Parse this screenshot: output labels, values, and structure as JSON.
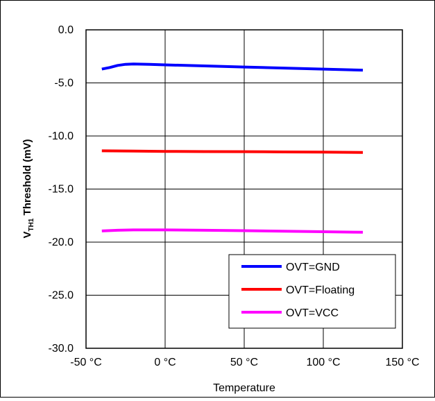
{
  "chart_data": {
    "type": "line",
    "title": "",
    "xlabel": "Temperature",
    "ylabel": {
      "prefix": "V",
      "subscript": "TH1",
      "suffix": " Threshold (mV)"
    },
    "xlim": [
      -50,
      150
    ],
    "ylim": [
      -30,
      0
    ],
    "x_ticks": [
      -50,
      0,
      50,
      100,
      150
    ],
    "x_tick_labels": [
      "-50 °C",
      "0 °C",
      "50 °C",
      "100 °C",
      "150 °C"
    ],
    "y_ticks": [
      0,
      -5,
      -10,
      -15,
      -20,
      -25,
      -30
    ],
    "y_tick_labels": [
      "0.0",
      "-5.0",
      "-10.0",
      "-15.0",
      "-20.0",
      "-25.0",
      "-30.0"
    ],
    "grid": true,
    "legend_position": "bottom-right",
    "series": [
      {
        "name": "OVT=GND",
        "color": "#0000ff",
        "x": [
          -40,
          -35,
          -30,
          -25,
          -20,
          -10,
          0,
          25,
          50,
          75,
          100,
          125
        ],
        "y": [
          -3.7,
          -3.55,
          -3.35,
          -3.25,
          -3.22,
          -3.25,
          -3.3,
          -3.4,
          -3.5,
          -3.6,
          -3.7,
          -3.8
        ]
      },
      {
        "name": "OVT=Floating",
        "color": "#ff0000",
        "x": [
          -40,
          -20,
          0,
          25,
          50,
          75,
          100,
          125
        ],
        "y": [
          -11.4,
          -11.42,
          -11.45,
          -11.47,
          -11.48,
          -11.5,
          -11.52,
          -11.55
        ]
      },
      {
        "name": "OVT=VCC",
        "color": "#ff00ff",
        "x": [
          -40,
          -30,
          -20,
          0,
          25,
          50,
          75,
          100,
          125
        ],
        "y": [
          -18.95,
          -18.88,
          -18.85,
          -18.85,
          -18.88,
          -18.92,
          -18.97,
          -19.02,
          -19.07
        ]
      }
    ]
  }
}
